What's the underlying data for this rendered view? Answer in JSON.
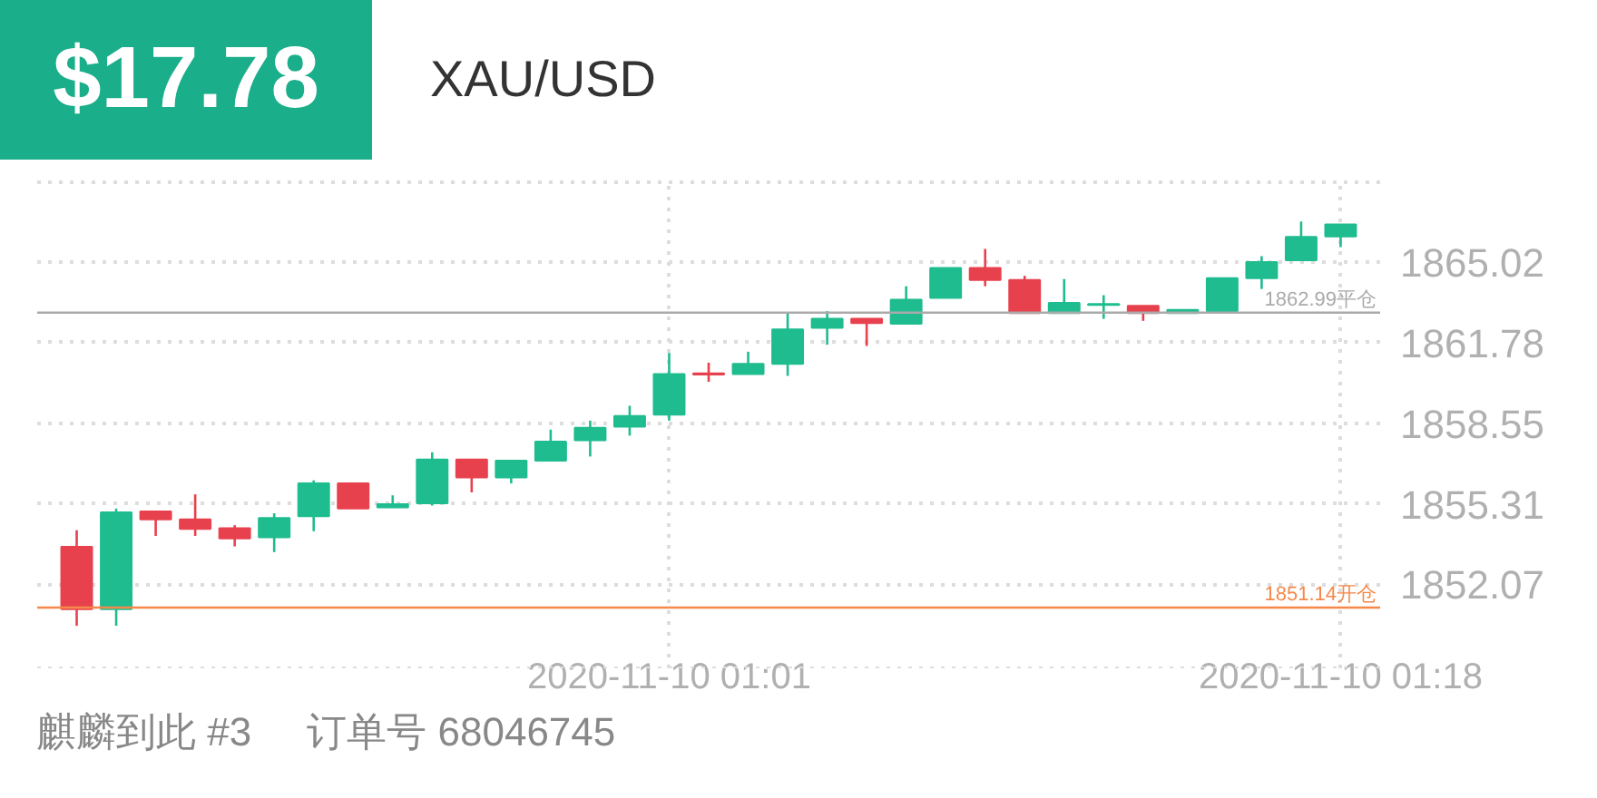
{
  "chart_data": {
    "type": "candlestick",
    "title": "XAU/USD",
    "subtitle": "$17.78",
    "annotations": [
      "麒麟到此 #3",
      "订单号 68046745"
    ],
    "x": [
      "2020-11-10T00:46",
      "2020-11-10T00:47",
      "2020-11-10T00:48",
      "2020-11-10T00:49",
      "2020-11-10T00:50",
      "2020-11-10T00:51",
      "2020-11-10T00:52",
      "2020-11-10T00:53",
      "2020-11-10T00:54",
      "2020-11-10T00:55",
      "2020-11-10T00:56",
      "2020-11-10T00:57",
      "2020-11-10T00:58",
      "2020-11-10T00:59",
      "2020-11-10T01:00",
      "2020-11-10T01:01",
      "2020-11-10T01:02",
      "2020-11-10T01:03",
      "2020-11-10T01:04",
      "2020-11-10T01:05",
      "2020-11-10T01:06",
      "2020-11-10T01:07",
      "2020-11-10T01:08",
      "2020-11-10T01:09",
      "2020-11-10T01:10",
      "2020-11-10T01:11",
      "2020-11-10T01:12",
      "2020-11-10T01:13",
      "2020-11-10T01:14",
      "2020-11-10T01:15",
      "2020-11-10T01:16",
      "2020-11-10T01:17",
      "2020-11-10T01:18"
    ],
    "ohlc": [
      [
        1853.58,
        1854.25,
        1850.41,
        1851.08
      ],
      [
        1851.08,
        1855.12,
        1850.41,
        1854.97
      ],
      [
        1855.0,
        1855.0,
        1854.02,
        1854.68
      ],
      [
        1854.68,
        1855.69,
        1854.02,
        1854.3
      ],
      [
        1854.33,
        1854.45,
        1853.6,
        1853.92
      ],
      [
        1853.96,
        1854.93,
        1853.37,
        1854.74
      ],
      [
        1854.81,
        1856.25,
        1854.21,
        1856.13
      ],
      [
        1856.13,
        1856.13,
        1855.12,
        1855.12
      ],
      [
        1855.17,
        1855.65,
        1855.17,
        1855.29
      ],
      [
        1855.33,
        1857.38,
        1855.24,
        1857.09
      ],
      [
        1857.09,
        1857.09,
        1855.77,
        1856.37
      ],
      [
        1856.37,
        1857.04,
        1856.13,
        1857.04
      ],
      [
        1857.04,
        1858.29,
        1857.04,
        1857.81
      ],
      [
        1857.86,
        1858.65,
        1857.21,
        1858.36
      ],
      [
        1858.41,
        1859.25,
        1858.05,
        1858.84
      ],
      [
        1858.89,
        1861.37,
        1858.65,
        1860.52
      ],
      [
        1860.55,
        1860.98,
        1860.21,
        1860.5
      ],
      [
        1860.52,
        1861.42,
        1860.52,
        1860.93
      ],
      [
        1860.93,
        1862.97,
        1860.45,
        1862.32
      ],
      [
        1862.38,
        1863.05,
        1861.7,
        1862.74
      ],
      [
        1862.74,
        1862.74,
        1861.65,
        1862.57
      ],
      [
        1862.54,
        1864.05,
        1862.54,
        1863.51
      ],
      [
        1863.58,
        1864.78,
        1863.58,
        1864.78
      ],
      [
        1864.78,
        1865.55,
        1864.05,
        1864.3
      ],
      [
        1864.3,
        1864.47,
        1862.97,
        1862.97
      ],
      [
        1862.97,
        1864.34,
        1862.97,
        1863.38
      ],
      [
        1863.3,
        1863.69,
        1862.74,
        1863.34
      ],
      [
        1863.26,
        1863.26,
        1862.66,
        1862.97
      ],
      [
        1862.97,
        1863.1,
        1862.97,
        1863.1
      ],
      [
        1863.05,
        1864.37,
        1863.05,
        1864.37
      ],
      [
        1864.37,
        1865.26,
        1863.94,
        1865.02
      ],
      [
        1865.09,
        1866.65,
        1865.09,
        1866.03
      ],
      [
        1866.05,
        1866.53,
        1865.62,
        1866.53
      ]
    ],
    "colors": [
      "#e8414e",
      "#1ebc8f",
      "#e8414e",
      "#e8414e",
      "#e8414e",
      "#1ebc8f",
      "#1ebc8f",
      "#e8414e",
      "#1ebc8f",
      "#1ebc8f",
      "#e8414e",
      "#1ebc8f",
      "#1ebc8f",
      "#1ebc8f",
      "#1ebc8f",
      "#1ebc8f",
      "#e8414e",
      "#1ebc8f",
      "#1ebc8f",
      "#1ebc8f",
      "#e8414e",
      "#1ebc8f",
      "#1ebc8f",
      "#e8414e",
      "#e8414e",
      "#1ebc8f",
      "#1ebc8f",
      "#e8414e",
      "#1ebc8f",
      "#1ebc8f",
      "#1ebc8f",
      "#1ebc8f",
      "#1ebc8f"
    ],
    "xlim": [
      "2020-11-10T00:45",
      "2020-11-10T01:19"
    ],
    "xticks": [
      {
        "value": "2020-11-10T01:01",
        "label": "2020-11-10 01:01"
      },
      {
        "value": "2020-11-10T01:18",
        "label": "2020-11-10 01:18"
      }
    ],
    "ylim": [
      1848.7,
      1868.3
    ],
    "yticks": [
      {
        "value": 1868.26,
        "label": null
      },
      1865.02,
      1861.78,
      1858.55,
      1855.31,
      1852.07
    ],
    "grid": true,
    "ref_lines": [
      {
        "axis": "y",
        "value": 1862.99,
        "label": "1862.99平仓",
        "color": "#aaaaaa"
      },
      {
        "axis": "y",
        "value": 1851.14,
        "label": "1851.14开仓",
        "color": "#f5894a"
      }
    ]
  }
}
